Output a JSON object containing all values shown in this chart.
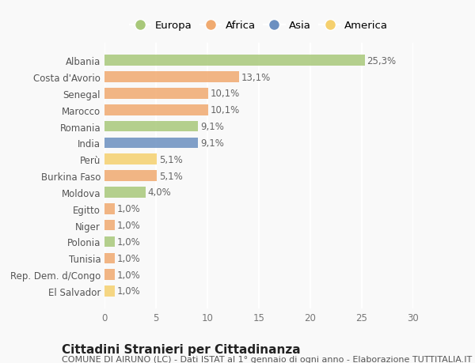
{
  "categories": [
    "Albania",
    "Costa d'Avorio",
    "Senegal",
    "Marocco",
    "Romania",
    "India",
    "Perù",
    "Burkina Faso",
    "Moldova",
    "Egitto",
    "Niger",
    "Polonia",
    "Tunisia",
    "Rep. Dem. d/Congo",
    "El Salvador"
  ],
  "values": [
    25.3,
    13.1,
    10.1,
    10.1,
    9.1,
    9.1,
    5.1,
    5.1,
    4.0,
    1.0,
    1.0,
    1.0,
    1.0,
    1.0,
    1.0
  ],
  "labels": [
    "25,3%",
    "13,1%",
    "10,1%",
    "10,1%",
    "9,1%",
    "9,1%",
    "5,1%",
    "5,1%",
    "4,0%",
    "1,0%",
    "1,0%",
    "1,0%",
    "1,0%",
    "1,0%",
    "1,0%"
  ],
  "colors": [
    "#a8c87a",
    "#f0aa70",
    "#f0aa70",
    "#f0aa70",
    "#a8c87a",
    "#6b8fc0",
    "#f5d06e",
    "#f0aa70",
    "#a8c87a",
    "#f0aa70",
    "#f0aa70",
    "#a8c87a",
    "#f0aa70",
    "#f0aa70",
    "#f5d06e"
  ],
  "legend_labels": [
    "Europa",
    "Africa",
    "Asia",
    "America"
  ],
  "legend_colors": [
    "#a8c87a",
    "#f0aa70",
    "#6b8fc0",
    "#f5d06e"
  ],
  "xlim": [
    0,
    30
  ],
  "xticks": [
    0,
    5,
    10,
    15,
    20,
    25,
    30
  ],
  "title": "Cittadini Stranieri per Cittadinanza",
  "subtitle": "COMUNE DI AIRUNO (LC) - Dati ISTAT al 1° gennaio di ogni anno - Elaborazione TUTTITALIA.IT",
  "bg_color": "#f9f9f9",
  "bar_height": 0.65,
  "label_fontsize": 8.5,
  "tick_fontsize": 8.5,
  "legend_fontsize": 9.5,
  "title_fontsize": 11,
  "subtitle_fontsize": 8
}
